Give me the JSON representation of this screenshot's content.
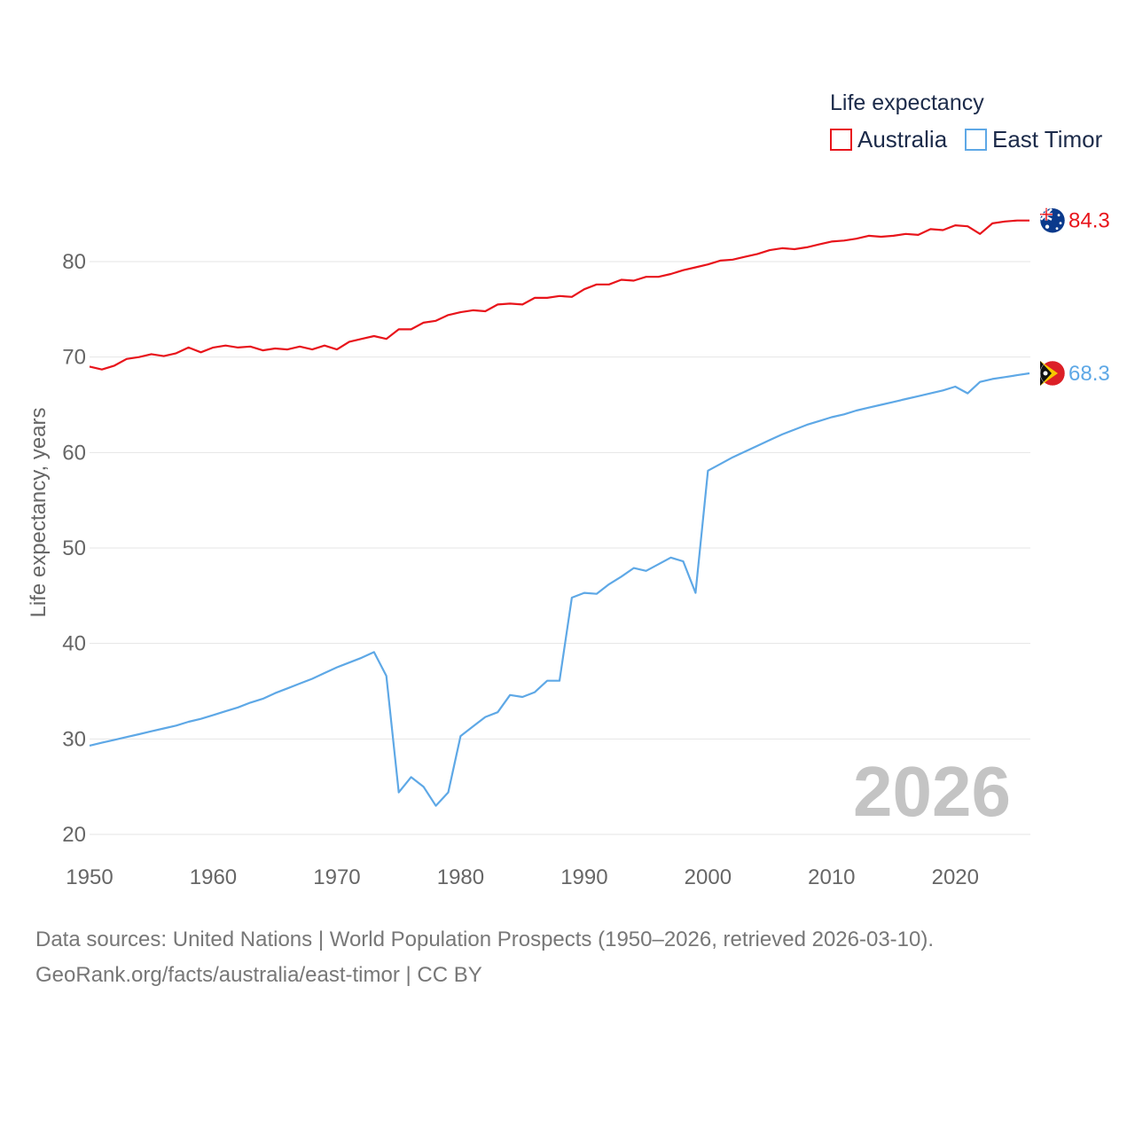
{
  "chart_data": {
    "type": "line",
    "title": "",
    "legend_title": "Life expectancy",
    "legend_placement": "top-right",
    "xlabel": "",
    "ylabel": "Life expectancy, years",
    "xlim": [
      1950,
      2026
    ],
    "ylim": [
      20,
      85
    ],
    "x_ticks": [
      1950,
      1960,
      1970,
      1980,
      1990,
      2000,
      2010,
      2020
    ],
    "y_ticks": [
      20,
      30,
      40,
      50,
      60,
      70,
      80
    ],
    "year_watermark": "2026",
    "x": [
      1950,
      1951,
      1952,
      1953,
      1954,
      1955,
      1956,
      1957,
      1958,
      1959,
      1960,
      1961,
      1962,
      1963,
      1964,
      1965,
      1966,
      1967,
      1968,
      1969,
      1970,
      1971,
      1972,
      1973,
      1974,
      1975,
      1976,
      1977,
      1978,
      1979,
      1980,
      1981,
      1982,
      1983,
      1984,
      1985,
      1986,
      1987,
      1988,
      1989,
      1990,
      1991,
      1992,
      1993,
      1994,
      1995,
      1996,
      1997,
      1998,
      1999,
      2000,
      2001,
      2002,
      2003,
      2004,
      2005,
      2006,
      2007,
      2008,
      2009,
      2010,
      2011,
      2012,
      2013,
      2014,
      2015,
      2016,
      2017,
      2018,
      2019,
      2020,
      2021,
      2022,
      2023,
      2024,
      2025,
      2026
    ],
    "series": [
      {
        "name": "Australia",
        "color": "#e8141b",
        "end_label": "84.3",
        "flag": "australia-flag",
        "values": [
          69.0,
          68.7,
          69.1,
          69.8,
          70.0,
          70.3,
          70.1,
          70.4,
          71.0,
          70.5,
          71.0,
          71.2,
          71.0,
          71.1,
          70.7,
          70.9,
          70.8,
          71.1,
          70.8,
          71.2,
          70.8,
          71.6,
          71.9,
          72.2,
          71.9,
          72.9,
          72.9,
          73.6,
          73.8,
          74.4,
          74.7,
          74.9,
          74.8,
          75.5,
          75.6,
          75.5,
          76.2,
          76.2,
          76.4,
          76.3,
          77.1,
          77.6,
          77.6,
          78.1,
          78.0,
          78.4,
          78.4,
          78.7,
          79.1,
          79.4,
          79.7,
          80.1,
          80.2,
          80.5,
          80.8,
          81.2,
          81.4,
          81.3,
          81.5,
          81.8,
          82.1,
          82.2,
          82.4,
          82.7,
          82.6,
          82.7,
          82.9,
          82.8,
          83.4,
          83.3,
          83.8,
          83.7,
          82.9,
          84.0,
          84.2,
          84.3,
          84.3
        ]
      },
      {
        "name": "East Timor",
        "color": "#5ea8e6",
        "end_label": "68.3",
        "flag": "east-timor-flag",
        "values": [
          29.3,
          29.6,
          29.9,
          30.2,
          30.5,
          30.8,
          31.1,
          31.4,
          31.8,
          32.1,
          32.5,
          32.9,
          33.3,
          33.8,
          34.2,
          34.8,
          35.3,
          35.8,
          36.3,
          36.9,
          37.5,
          38.0,
          38.5,
          39.1,
          36.6,
          24.4,
          26.0,
          25.0,
          23.0,
          24.4,
          30.3,
          31.3,
          32.3,
          32.8,
          34.6,
          34.4,
          34.9,
          36.1,
          36.1,
          44.8,
          45.3,
          45.2,
          46.2,
          47.0,
          47.9,
          47.6,
          48.3,
          49.0,
          48.6,
          45.3,
          58.1,
          58.8,
          59.5,
          60.1,
          60.7,
          61.3,
          61.9,
          62.4,
          62.9,
          63.3,
          63.7,
          64.0,
          64.4,
          64.7,
          65.0,
          65.3,
          65.6,
          65.9,
          66.2,
          66.5,
          66.9,
          66.2,
          67.4,
          67.7,
          67.9,
          68.1,
          68.3
        ]
      }
    ]
  },
  "footer": {
    "sources": "Data sources: United Nations | World Population Prospects (1950–2026, retrieved 2026-03-10).",
    "credit": "GeoRank.org/facts/australia/east-timor | CC BY"
  }
}
